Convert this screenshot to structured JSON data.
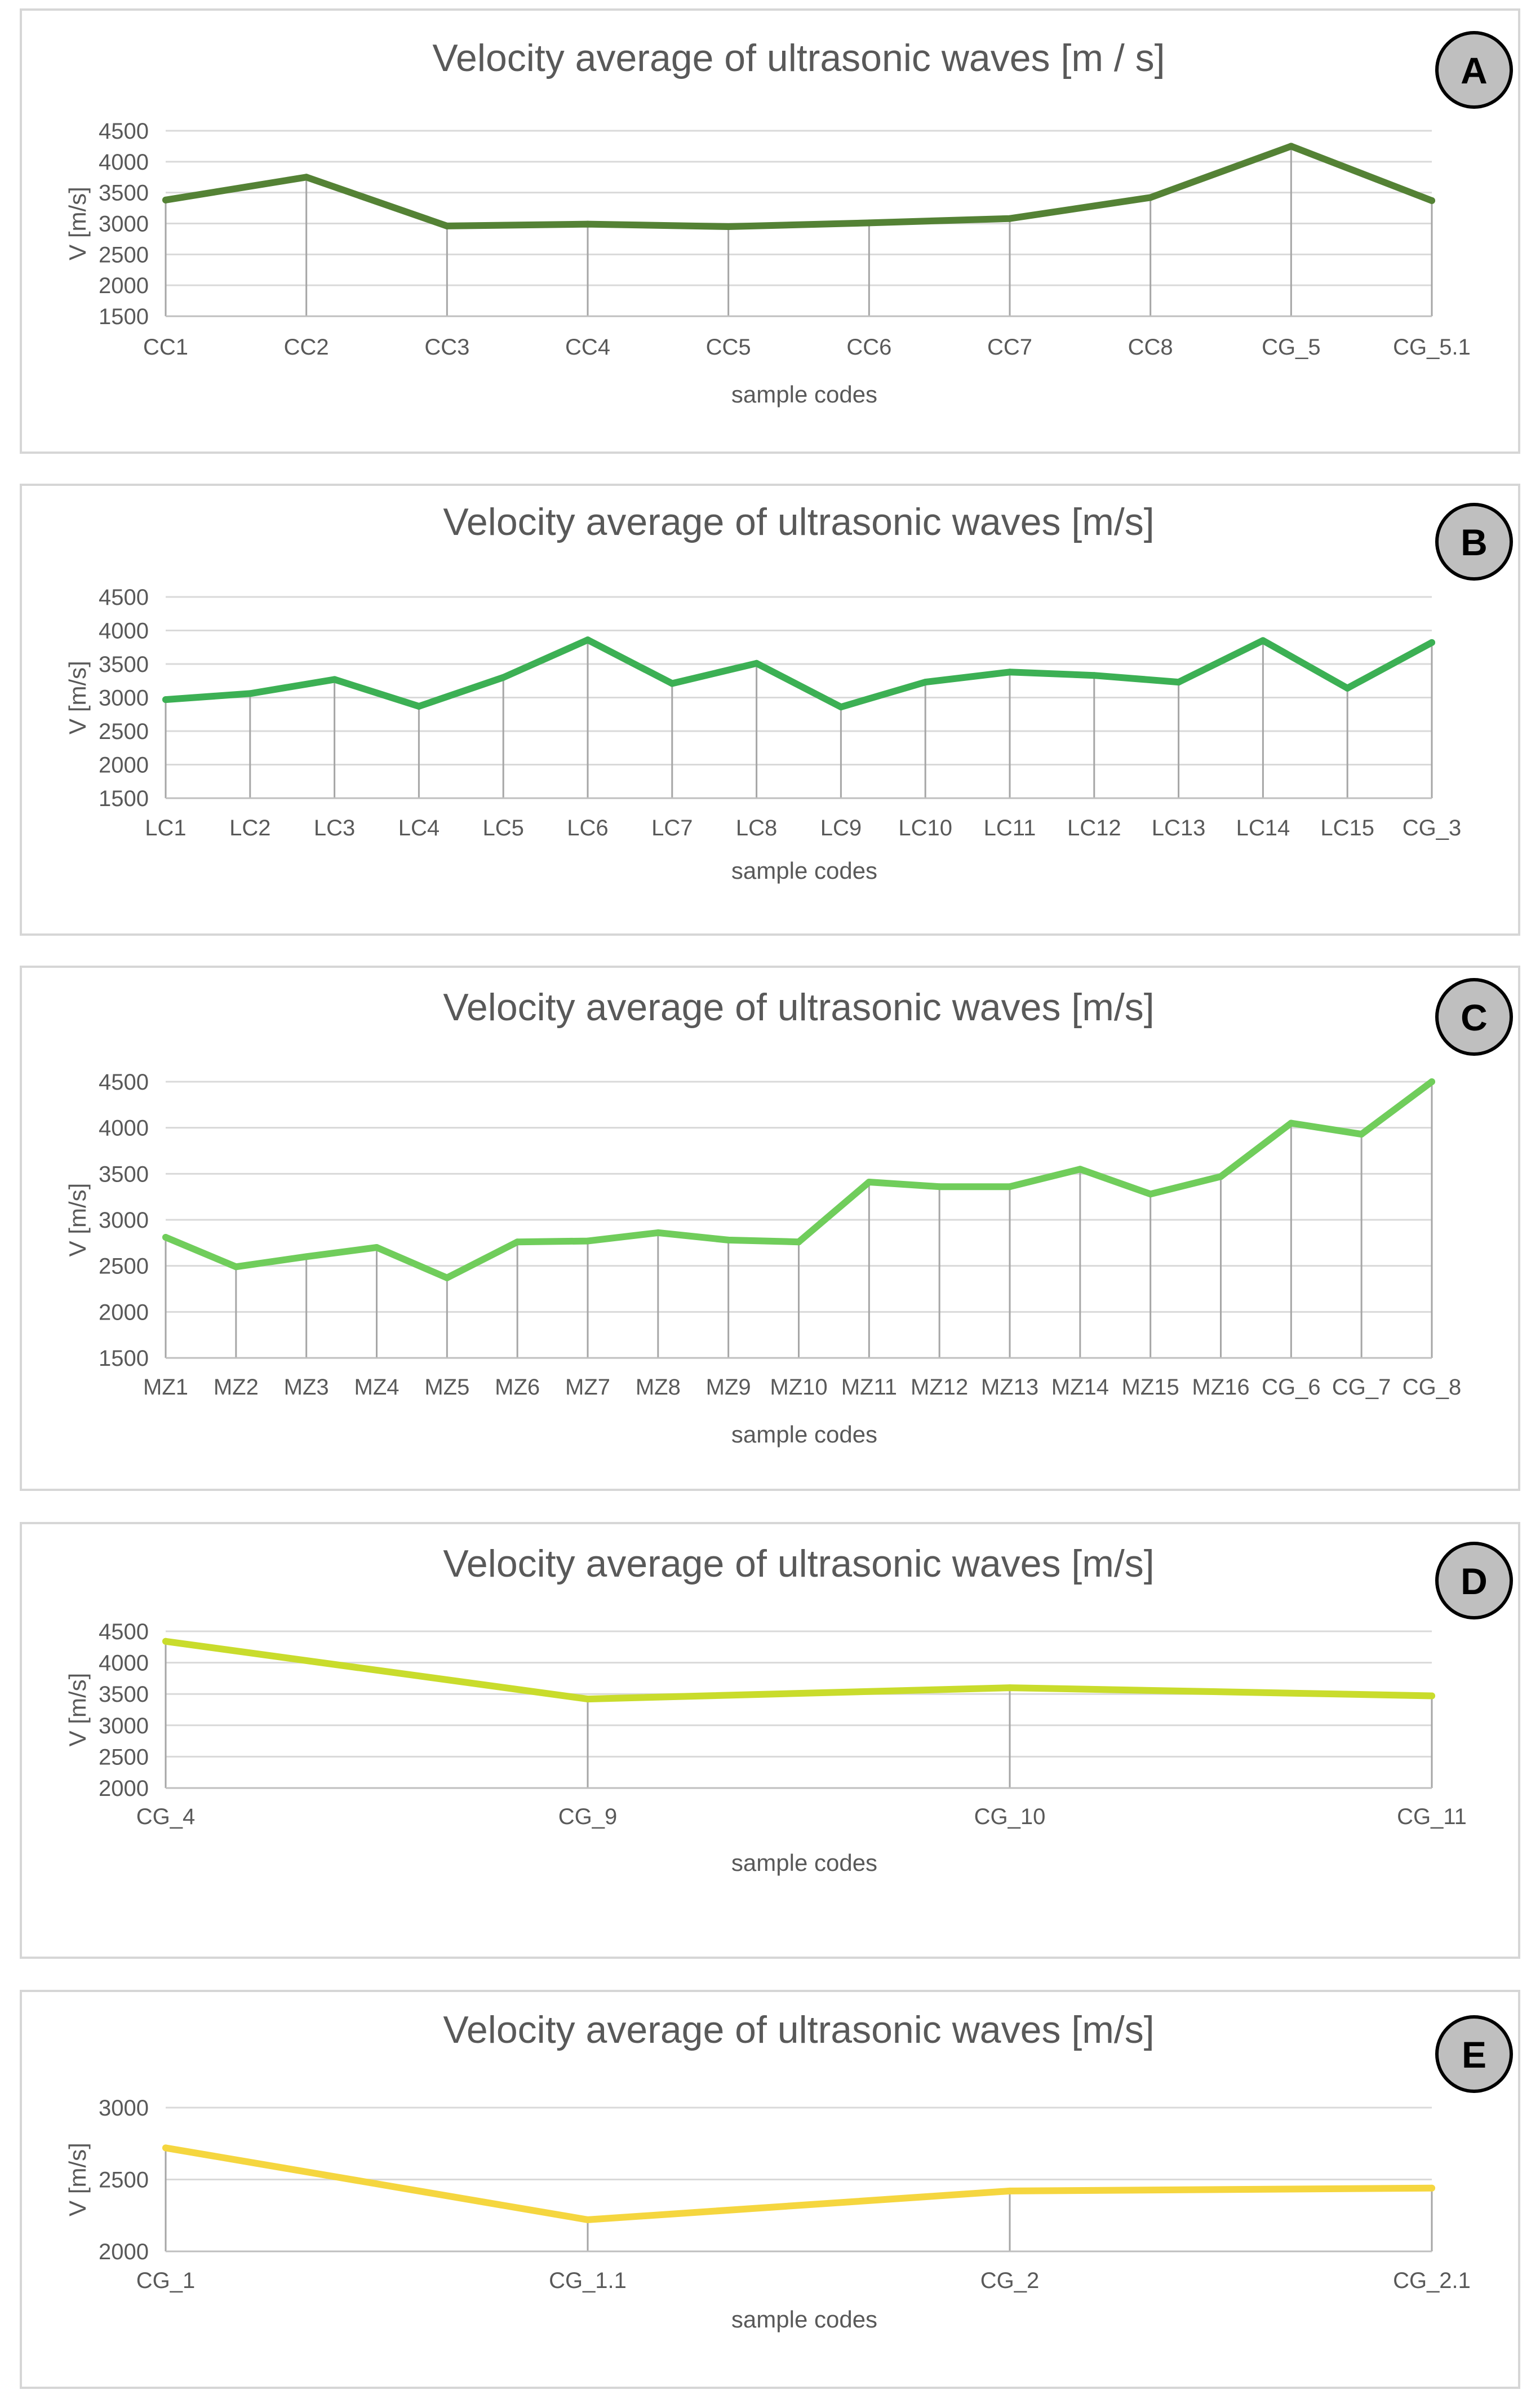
{
  "charts": [
    {
      "badge": "A",
      "chart_data": {
        "type": "line",
        "title": "Velocity average of ultrasonic waves [m / s]",
        "xlabel": "sample codes",
        "ylabel": "V [m/s]",
        "ylim": [
          1500,
          4500
        ],
        "yticks": [
          1500,
          2000,
          2500,
          3000,
          3500,
          4000,
          4500
        ],
        "grid": true,
        "legend": "none",
        "categories": [
          "CC1",
          "CC2",
          "CC3",
          "CC4",
          "CC5",
          "CC6",
          "CC7",
          "CC8",
          "CG_5",
          "CG_5.1"
        ],
        "series": [
          {
            "color": "#548235",
            "values": [
              3380,
              3750,
              2960,
              2990,
              2950,
              3010,
              3080,
              3420,
              4250,
              3370
            ]
          }
        ]
      }
    },
    {
      "badge": "B",
      "chart_data": {
        "type": "line",
        "title": "Velocity average of ultrasonic waves [m/s]",
        "xlabel": "sample codes",
        "ylabel": "V [m/s]",
        "ylim": [
          1500,
          4500
        ],
        "yticks": [
          1500,
          2000,
          2500,
          3000,
          3500,
          4000,
          4500
        ],
        "grid": true,
        "legend": "none",
        "categories": [
          "LC1",
          "LC2",
          "LC3",
          "LC4",
          "LC5",
          "LC6",
          "LC7",
          "LC8",
          "LC9",
          "LC10",
          "LC11",
          "LC12",
          "LC13",
          "LC14",
          "LC15",
          "CG_3"
        ],
        "series": [
          {
            "color": "#3cb054",
            "values": [
              2970,
              3060,
              3270,
              2870,
              3300,
              3860,
              3210,
              3510,
              2860,
              3230,
              3380,
              3330,
              3230,
              3850,
              3140,
              3820
            ]
          }
        ]
      }
    },
    {
      "badge": "C",
      "chart_data": {
        "type": "line",
        "title": "Velocity average of ultrasonic waves [m/s]",
        "xlabel": "sample codes",
        "ylabel": "V [m/s]",
        "ylim": [
          1500,
          4500
        ],
        "yticks": [
          1500,
          2000,
          2500,
          3000,
          3500,
          4000,
          4500
        ],
        "grid": true,
        "legend": "none",
        "categories": [
          "MZ1",
          "MZ2",
          "MZ3",
          "MZ4",
          "MZ5",
          "MZ6",
          "MZ7",
          "MZ8",
          "MZ9",
          "MZ10",
          "MZ11",
          "MZ12",
          "MZ13",
          "MZ14",
          "MZ15",
          "MZ16",
          "CG_6",
          "CG_7",
          "CG_8"
        ],
        "series": [
          {
            "color": "#70cd5b",
            "values": [
              2810,
              2490,
              2600,
              2700,
              2370,
              2760,
              2770,
              2860,
              2780,
              2760,
              3410,
              3360,
              3360,
              3550,
              3280,
              3470,
              4050,
              3930,
              4500
            ]
          }
        ]
      }
    },
    {
      "badge": "D",
      "chart_data": {
        "type": "line",
        "title": "Velocity average of ultrasonic waves [m/s]",
        "xlabel": "sample codes",
        "ylabel": "V [m/s]",
        "ylim": [
          2000,
          4500
        ],
        "yticks": [
          2000,
          2500,
          3000,
          3500,
          4000,
          4500
        ],
        "grid": true,
        "legend": "none",
        "categories": [
          "CG_4",
          "CG_9",
          "CG_10",
          "CG_11"
        ],
        "series": [
          {
            "color": "#c9dc2c",
            "values": [
              4340,
              3420,
              3600,
              3470
            ]
          }
        ]
      }
    },
    {
      "badge": "E",
      "chart_data": {
        "type": "line",
        "title": "Velocity average of ultrasonic waves [m/s]",
        "xlabel": "sample codes",
        "ylabel": "V [m/s]",
        "ylim": [
          2000,
          3000
        ],
        "yticks": [
          2000,
          2500,
          3000
        ],
        "grid": true,
        "legend": "none",
        "categories": [
          "CG_1",
          "CG_1.1",
          "CG_2",
          "CG_2.1"
        ],
        "series": [
          {
            "color": "#f5d63f",
            "values": [
              2720,
              2220,
              2420,
              2440
            ]
          }
        ]
      }
    }
  ]
}
